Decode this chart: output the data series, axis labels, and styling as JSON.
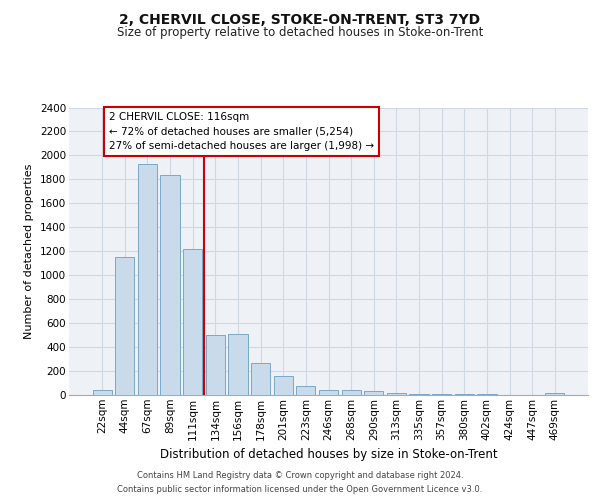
{
  "title": "2, CHERVIL CLOSE, STOKE-ON-TRENT, ST3 7YD",
  "subtitle": "Size of property relative to detached houses in Stoke-on-Trent",
  "xlabel": "Distribution of detached houses by size in Stoke-on-Trent",
  "ylabel": "Number of detached properties",
  "footer_line1": "Contains HM Land Registry data © Crown copyright and database right 2024.",
  "footer_line2": "Contains public sector information licensed under the Open Government Licence v3.0.",
  "annotation_line1": "2 CHERVIL CLOSE: 116sqm",
  "annotation_line2": "← 72% of detached houses are smaller (5,254)",
  "annotation_line3": "27% of semi-detached houses are larger (1,998) →",
  "bar_labels": [
    "22sqm",
    "44sqm",
    "67sqm",
    "89sqm",
    "111sqm",
    "134sqm",
    "156sqm",
    "178sqm",
    "201sqm",
    "223sqm",
    "246sqm",
    "268sqm",
    "290sqm",
    "313sqm",
    "335sqm",
    "357sqm",
    "380sqm",
    "402sqm",
    "424sqm",
    "447sqm",
    "469sqm"
  ],
  "bar_values": [
    40,
    1150,
    1930,
    1840,
    1220,
    500,
    510,
    270,
    155,
    75,
    45,
    45,
    35,
    20,
    12,
    8,
    5,
    5,
    3,
    3,
    20
  ],
  "bar_color": "#c9daea",
  "bar_edge_color": "#7aa8c8",
  "vline_color": "#cc0000",
  "grid_color": "#d0d8e4",
  "bg_color": "#eef2f7",
  "ylim": [
    0,
    2400
  ],
  "yticks": [
    0,
    200,
    400,
    600,
    800,
    1000,
    1200,
    1400,
    1600,
    1800,
    2000,
    2200,
    2400
  ],
  "title_fontsize": 10,
  "subtitle_fontsize": 8.5,
  "ylabel_fontsize": 8,
  "xlabel_fontsize": 8.5,
  "tick_fontsize": 7.5,
  "footer_fontsize": 6,
  "ann_fontsize": 7.5
}
